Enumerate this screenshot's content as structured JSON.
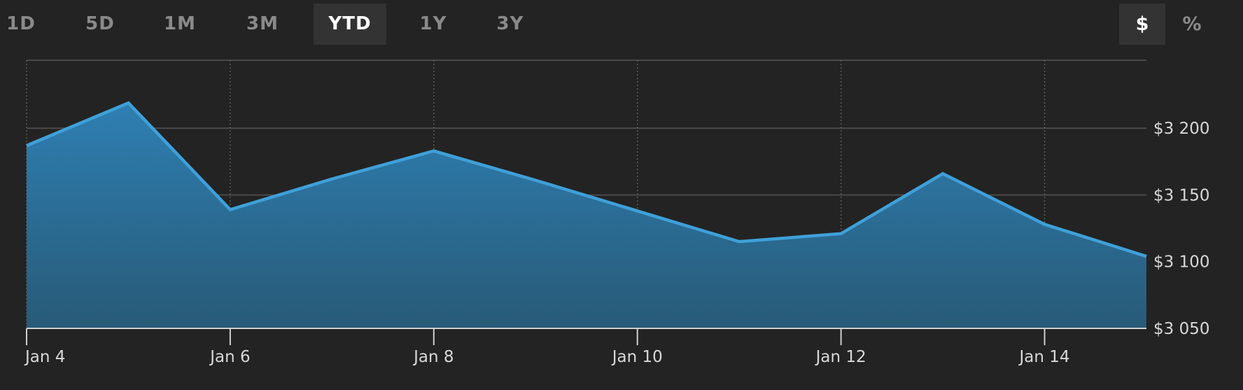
{
  "range_tabs": [
    {
      "label": "1D",
      "active": false
    },
    {
      "label": "5D",
      "active": false
    },
    {
      "label": "1M",
      "active": false
    },
    {
      "label": "3M",
      "active": false
    },
    {
      "label": "YTD",
      "active": true
    },
    {
      "label": "1Y",
      "active": false
    },
    {
      "label": "3Y",
      "active": false
    }
  ],
  "unit_tabs": [
    {
      "label": "$",
      "active": true
    },
    {
      "label": "%",
      "active": false
    }
  ],
  "colors": {
    "background": "#232323",
    "line": "#3fa0d8",
    "fill_top": "#2e7fb3",
    "fill_bottom": "#285a77",
    "grid": "#4a4a4a",
    "axis": "#cfcfcf"
  },
  "chart_data": {
    "type": "area",
    "x": [
      "2021-01-04",
      "2021-01-05",
      "2021-01-06",
      "2021-01-07",
      "2021-01-08",
      "2021-01-09",
      "2021-01-10",
      "2021-01-11",
      "2021-01-12",
      "2021-01-13",
      "2021-01-14",
      "2021-01-15"
    ],
    "series": [
      {
        "values": [
          3187,
          3219,
          3139,
          3162,
          3183,
          3161,
          3138,
          3115,
          3121,
          3166,
          3128,
          3104
        ]
      }
    ],
    "xticks": [
      {
        "x": "2021-01-04",
        "label": "Jan 4"
      },
      {
        "x": "2021-01-06",
        "label": "Jan 6"
      },
      {
        "x": "2021-01-08",
        "label": "Jan 8"
      },
      {
        "x": "2021-01-10",
        "label": "Jan 10"
      },
      {
        "x": "2021-01-12",
        "label": "Jan 12"
      },
      {
        "x": "2021-01-14",
        "label": "Jan 14"
      }
    ],
    "yticks": [
      {
        "value": 3200,
        "label": "$3 200"
      },
      {
        "value": 3150,
        "label": "$3 150"
      },
      {
        "value": 3100,
        "label": "$3 100"
      },
      {
        "value": 3050,
        "label": "$3 050"
      }
    ],
    "ylim": [
      3050,
      3251
    ],
    "xlim": [
      "2021-01-04",
      "2021-01-15"
    ],
    "grid": true,
    "legend": "none"
  }
}
